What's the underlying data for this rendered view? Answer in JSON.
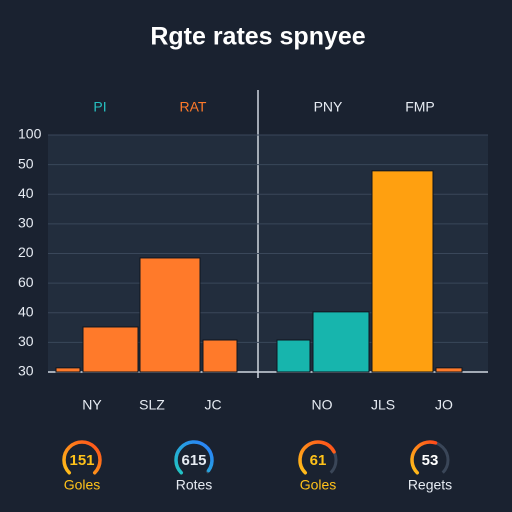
{
  "chart_data": {
    "type": "bar",
    "title": "Rgte rates spnyee",
    "legend": [
      {
        "name": "PI",
        "color": "#26c0c0"
      },
      {
        "name": "RAT",
        "color": "#ff7a2a"
      },
      {
        "name": "PNY",
        "color": "#e6ebf2"
      },
      {
        "name": "FMP",
        "color": "#e6ebf2"
      }
    ],
    "y_axis_labels": [
      100,
      50,
      40,
      30,
      20,
      60,
      40,
      30,
      30
    ],
    "ylim": [
      0,
      8
    ],
    "categories": [
      null,
      "NY",
      "SLZ",
      "JC",
      "NO",
      "JLS",
      "JO",
      null
    ],
    "values": [
      0.14,
      1.52,
      3.85,
      1.08,
      1.08,
      2.03,
      6.79,
      0.14
    ],
    "colors": [
      "#ff7a2a",
      "#ff7a2a",
      "#ff7a2a",
      "#ff7a2a",
      "#17b5ad",
      "#17b5ad",
      "#ffa010",
      "#ff7a2a"
    ],
    "grid": true,
    "gauges": [
      {
        "value": 151,
        "label": "Goles"
      },
      {
        "value": 615,
        "label": "Rotes"
      },
      {
        "value": 61,
        "label": "Goles"
      },
      {
        "value": 53,
        "label": "Regets"
      }
    ]
  }
}
